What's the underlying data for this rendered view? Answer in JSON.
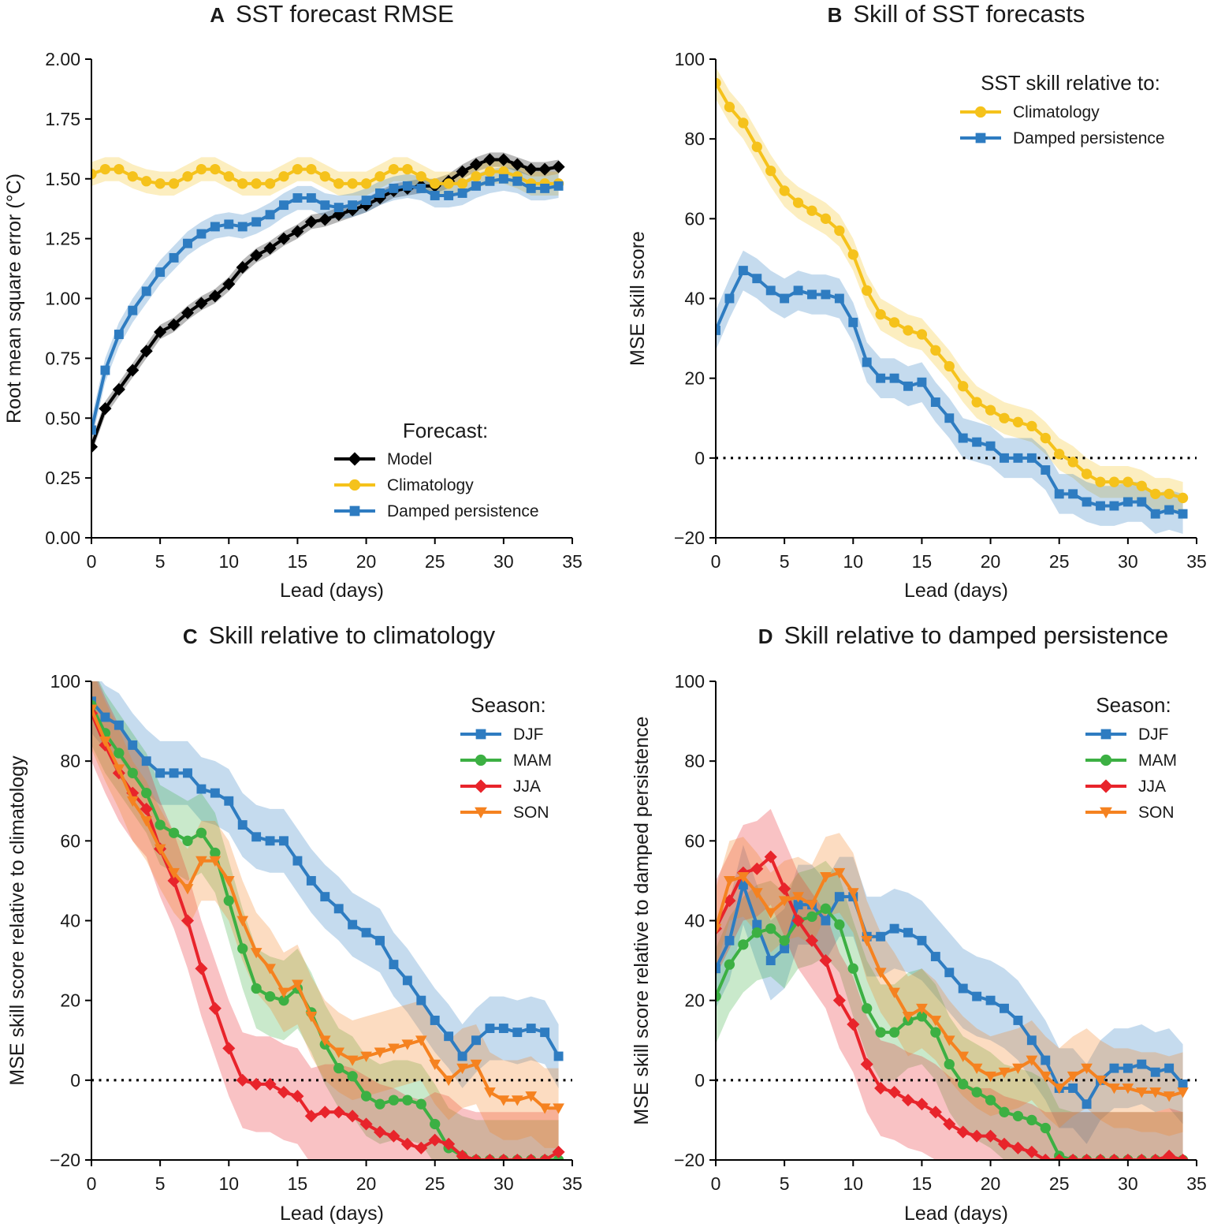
{
  "colors": {
    "model": "#000000",
    "climatology": "#f5c21b",
    "damped_persistence": "#2e7cc1",
    "DJF": "#2e7cc1",
    "MAM": "#3cb043",
    "JJA": "#e8242b",
    "SON": "#f58220",
    "zero_line": "#000000"
  },
  "chart_data": [
    {
      "id": "A",
      "type": "line",
      "letter": "A",
      "title": "SST forecast RMSE",
      "xlabel": "Lead (days)",
      "ylabel": "Root mean square error (°C)",
      "xlim": [
        0,
        35
      ],
      "ylim": [
        0,
        2
      ],
      "xticks": [
        0,
        5,
        10,
        15,
        20,
        25,
        30,
        35
      ],
      "yticks": [
        0,
        0.25,
        0.5,
        0.75,
        1.0,
        1.25,
        1.5,
        1.75,
        2.0
      ],
      "ytick_labels": [
        "0.00",
        "0.25",
        "0.50",
        "0.75",
        "1.00",
        "1.25",
        "1.50",
        "1.75",
        "2.00"
      ],
      "zero_line": false,
      "legend": {
        "title": "Forecast:",
        "position": "bottom-right"
      },
      "series": [
        {
          "name": "Model",
          "color_key": "model",
          "marker": "diamond",
          "band": 0.03,
          "values": [
            0.38,
            0.54,
            0.62,
            0.7,
            0.78,
            0.86,
            0.89,
            0.94,
            0.98,
            1.01,
            1.06,
            1.13,
            1.18,
            1.21,
            1.25,
            1.28,
            1.32,
            1.33,
            1.35,
            1.37,
            1.39,
            1.42,
            1.45,
            1.46,
            1.47,
            1.47,
            1.49,
            1.53,
            1.56,
            1.58,
            1.58,
            1.56,
            1.54,
            1.54,
            1.55
          ]
        },
        {
          "name": "Climatology",
          "color_key": "climatology",
          "marker": "circle",
          "band": 0.05,
          "values": [
            1.52,
            1.54,
            1.54,
            1.51,
            1.49,
            1.48,
            1.48,
            1.51,
            1.54,
            1.54,
            1.51,
            1.48,
            1.48,
            1.48,
            1.51,
            1.54,
            1.54,
            1.51,
            1.48,
            1.48,
            1.48,
            1.51,
            1.54,
            1.54,
            1.51,
            1.48,
            1.48,
            1.48,
            1.51,
            1.53,
            1.53,
            1.51,
            1.48,
            1.48,
            1.48
          ]
        },
        {
          "name": "Damped persistence",
          "color_key": "damped_persistence",
          "marker": "square",
          "band": 0.05,
          "values": [
            0.45,
            0.7,
            0.85,
            0.95,
            1.03,
            1.11,
            1.17,
            1.23,
            1.27,
            1.3,
            1.31,
            1.3,
            1.32,
            1.35,
            1.39,
            1.42,
            1.42,
            1.39,
            1.38,
            1.39,
            1.41,
            1.44,
            1.46,
            1.47,
            1.46,
            1.43,
            1.43,
            1.44,
            1.47,
            1.49,
            1.5,
            1.49,
            1.46,
            1.46,
            1.47
          ]
        }
      ]
    },
    {
      "id": "B",
      "type": "line",
      "letter": "B",
      "title": "Skill of SST forecasts",
      "xlabel": "Lead (days)",
      "ylabel": "MSE skill score",
      "xlim": [
        0,
        35
      ],
      "ylim": [
        -20,
        100
      ],
      "xticks": [
        0,
        5,
        10,
        15,
        20,
        25,
        30,
        35
      ],
      "yticks": [
        -20,
        0,
        20,
        40,
        60,
        80,
        100
      ],
      "ytick_labels": [
        "−20",
        "0",
        "20",
        "40",
        "60",
        "80",
        "100"
      ],
      "zero_line": true,
      "legend": {
        "title": "SST skill relative to:",
        "position": "top-right"
      },
      "series": [
        {
          "name": "Climatology",
          "color_key": "climatology",
          "marker": "circle",
          "band": 4,
          "values": [
            94,
            88,
            84,
            78,
            72,
            67,
            64,
            62,
            60,
            57,
            51,
            42,
            36,
            34,
            32,
            31,
            27,
            23,
            18,
            14,
            12,
            10,
            9,
            8,
            5,
            1,
            -1,
            -4,
            -6,
            -6,
            -6,
            -7,
            -9,
            -9,
            -10
          ]
        },
        {
          "name": "Damped persistence",
          "color_key": "damped_persistence",
          "marker": "square",
          "band": 5,
          "values": [
            32,
            40,
            47,
            45,
            42,
            40,
            42,
            41,
            41,
            40,
            34,
            24,
            20,
            20,
            18,
            19,
            14,
            10,
            5,
            4,
            3,
            0,
            0,
            0,
            -3,
            -9,
            -9,
            -11,
            -12,
            -12,
            -11,
            -11,
            -14,
            -13,
            -14
          ]
        }
      ]
    },
    {
      "id": "C",
      "type": "line",
      "letter": "C",
      "title": "Skill relative to climatology",
      "xlabel": "Lead (days)",
      "ylabel": "MSE skill score relative to climatology",
      "xlim": [
        0,
        35
      ],
      "ylim": [
        -20,
        100
      ],
      "xticks": [
        0,
        5,
        10,
        15,
        20,
        25,
        30,
        35
      ],
      "yticks": [
        -20,
        0,
        20,
        40,
        60,
        80,
        100
      ],
      "ytick_labels": [
        "−20",
        "0",
        "20",
        "40",
        "60",
        "80",
        "100"
      ],
      "zero_line": true,
      "legend": {
        "title": "Season:",
        "position": "top-right"
      },
      "series": [
        {
          "name": "DJF",
          "color_key": "DJF",
          "marker": "square",
          "band": 8,
          "values": [
            95,
            91,
            89,
            84,
            80,
            77,
            77,
            77,
            73,
            72,
            70,
            64,
            61,
            60,
            60,
            55,
            50,
            46,
            43,
            39,
            37,
            35,
            29,
            25,
            20,
            15,
            11,
            6,
            10,
            13,
            13,
            12,
            13,
            12,
            6
          ]
        },
        {
          "name": "MAM",
          "color_key": "MAM",
          "marker": "circle",
          "band": 10,
          "values": [
            94,
            87,
            82,
            77,
            72,
            64,
            62,
            60,
            62,
            57,
            45,
            33,
            23,
            21,
            20,
            23,
            17,
            9,
            3,
            1,
            -4,
            -6,
            -5,
            -5,
            -6,
            -11,
            -17,
            -19,
            -20,
            -20,
            -20,
            -20,
            -20,
            -20,
            -20
          ]
        },
        {
          "name": "JJA",
          "color_key": "JJA",
          "marker": "diamond",
          "band": 12,
          "values": [
            92,
            84,
            77,
            72,
            68,
            58,
            50,
            40,
            28,
            18,
            8,
            0,
            -1,
            -1,
            -3,
            -4,
            -9,
            -8,
            -8,
            -9,
            -11,
            -13,
            -14,
            -16,
            -17,
            -15,
            -16,
            -19,
            -20,
            -20,
            -20,
            -20,
            -20,
            -20,
            -18
          ]
        },
        {
          "name": "SON",
          "color_key": "SON",
          "marker": "triangle-down",
          "band": 10,
          "values": [
            93,
            85,
            78,
            70,
            65,
            58,
            52,
            48,
            55,
            55,
            50,
            40,
            32,
            28,
            22,
            24,
            16,
            10,
            7,
            5,
            6,
            7,
            8,
            9,
            10,
            4,
            0,
            3,
            4,
            -3,
            -5,
            -5,
            -4,
            -7,
            -7
          ]
        }
      ]
    },
    {
      "id": "D",
      "type": "line",
      "letter": "D",
      "title": "Skill relative to damped persistence",
      "xlabel": "Lead (days)",
      "ylabel": "MSE skill score relative to damped persistence",
      "xlim": [
        0,
        35
      ],
      "ylim": [
        -20,
        100
      ],
      "xticks": [
        0,
        5,
        10,
        15,
        20,
        25,
        30,
        35
      ],
      "yticks": [
        -20,
        0,
        20,
        40,
        60,
        80,
        100
      ],
      "ytick_labels": [
        "−20",
        "0",
        "20",
        "40",
        "60",
        "80",
        "100"
      ],
      "zero_line": true,
      "legend": {
        "title": "Season:",
        "position": "top-right"
      },
      "series": [
        {
          "name": "DJF",
          "color_key": "DJF",
          "marker": "square",
          "band": 10,
          "values": [
            28,
            35,
            49,
            39,
            30,
            33,
            44,
            44,
            40,
            46,
            46,
            36,
            36,
            38,
            37,
            35,
            31,
            27,
            23,
            21,
            20,
            18,
            15,
            10,
            5,
            -2,
            -2,
            -6,
            0,
            3,
            3,
            4,
            2,
            3,
            -1
          ]
        },
        {
          "name": "MAM",
          "color_key": "MAM",
          "marker": "circle",
          "band": 12,
          "values": [
            21,
            29,
            34,
            37,
            38,
            35,
            40,
            41,
            43,
            39,
            28,
            18,
            12,
            12,
            15,
            16,
            12,
            4,
            -1,
            -3,
            -5,
            -8,
            -9,
            -10,
            -12,
            -19,
            -20,
            -20,
            -20,
            -20,
            -20,
            -20,
            -20,
            -20,
            -20
          ]
        },
        {
          "name": "JJA",
          "color_key": "JJA",
          "marker": "diamond",
          "band": 12,
          "values": [
            38,
            45,
            52,
            53,
            56,
            48,
            40,
            35,
            30,
            20,
            14,
            4,
            -2,
            -3,
            -5,
            -6,
            -8,
            -11,
            -13,
            -14,
            -14,
            -16,
            -17,
            -18,
            -20,
            -20,
            -20,
            -20,
            -20,
            -20,
            -20,
            -20,
            -20,
            -19,
            -20
          ]
        },
        {
          "name": "SON",
          "color_key": "SON",
          "marker": "triangle-down",
          "band": 10,
          "values": [
            38,
            50,
            51,
            47,
            42,
            45,
            46,
            44,
            51,
            52,
            47,
            35,
            27,
            22,
            16,
            18,
            15,
            10,
            6,
            3,
            1,
            2,
            3,
            5,
            1,
            -2,
            1,
            3,
            0,
            -2,
            -2,
            -3,
            -3,
            -4,
            -3
          ]
        }
      ]
    }
  ]
}
